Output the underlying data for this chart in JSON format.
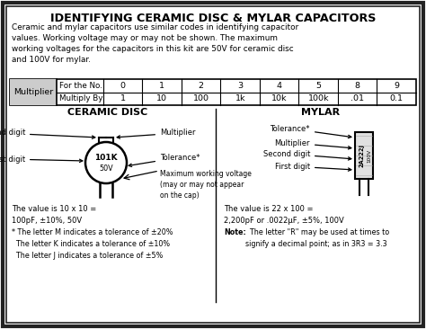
{
  "title": "IDENTIFYING CERAMIC DISC & MYLAR CAPACITORS",
  "intro_text": "Ceramic and mylar capacitors use similar codes in identifying capacitor\nvalues. Working voltage may or may not be shown. The maximum\nworking voltages for the capacitors in this kit are 50V for ceramic disc\nand 100V for mylar.",
  "table_col_headers": [
    "For the No.",
    "0",
    "1",
    "2",
    "3",
    "4",
    "5",
    "8",
    "9"
  ],
  "table_row_label": "Multiplier",
  "table_row2": [
    "Multiply By",
    "1",
    "10",
    "100",
    "1k",
    "10k",
    "100k",
    ".01",
    "0.1"
  ],
  "ceramic_title": "CERAMIC DISC",
  "mylar_title": "MYLAR",
  "ceramic_value": "The value is 10 x 10 =\n100pF, ±10%, 50V",
  "mylar_value": "The value is 22 x 100 =\n2,200pF or .0022μF, ±5%, 100V",
  "footnote_bullet": "* The letter M indicates a tolerance of ±20%\n  The letter K indicates a tolerance of ±10%\n  The letter J indicates a tolerance of ±5%",
  "note_bold": "Note:",
  "note_rest": "  The letter \"R\" may be used at times to\nsignify a decimal point; as in 3R3 = 3.3",
  "bg_color": "#ffffff",
  "border_color": "#222222",
  "table_header_bg": "#cccccc",
  "divider_color": "#333333"
}
